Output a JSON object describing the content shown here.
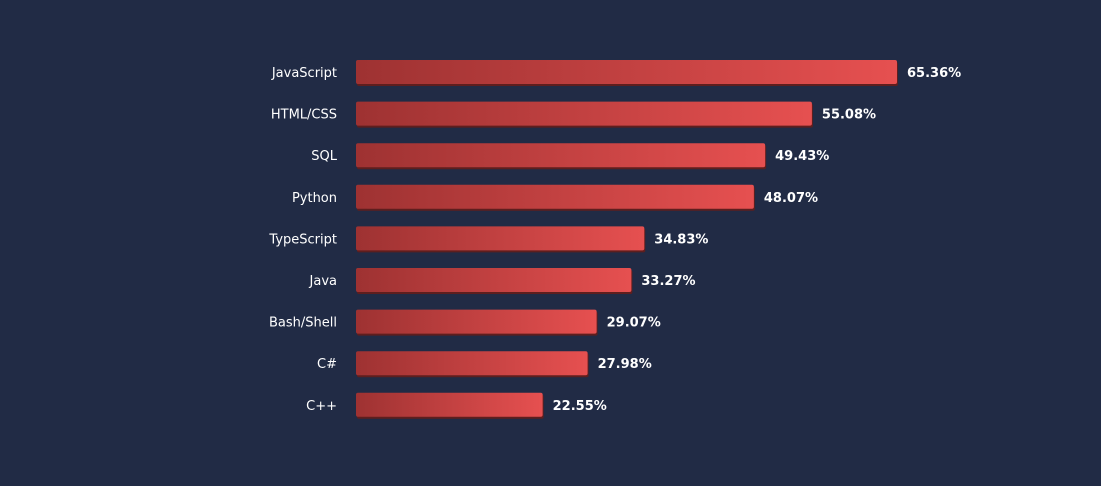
{
  "chart_data": {
    "type": "bar",
    "orientation": "horizontal",
    "categories": [
      "JavaScript",
      "HTML/CSS",
      "SQL",
      "Python",
      "TypeScript",
      "Java",
      "Bash/Shell",
      "C#",
      "C++"
    ],
    "values": [
      65.36,
      55.08,
      49.43,
      48.07,
      34.83,
      33.27,
      29.07,
      27.98,
      22.55
    ],
    "value_labels": [
      "65.36%",
      "55.08%",
      "49.43%",
      "48.07%",
      "34.83%",
      "33.27%",
      "29.07%",
      "27.98%",
      "22.55%"
    ],
    "unit": "%",
    "xlim": [
      0,
      65.36
    ],
    "grid": false,
    "legend": "none",
    "title": "",
    "xlabel": "",
    "ylabel": ""
  },
  "colors": {
    "background": "#212b45",
    "bar_start": "#9e3232",
    "bar_end": "#e65050",
    "bar_shadow": "#5e1e1e",
    "text": "#ffffff"
  }
}
